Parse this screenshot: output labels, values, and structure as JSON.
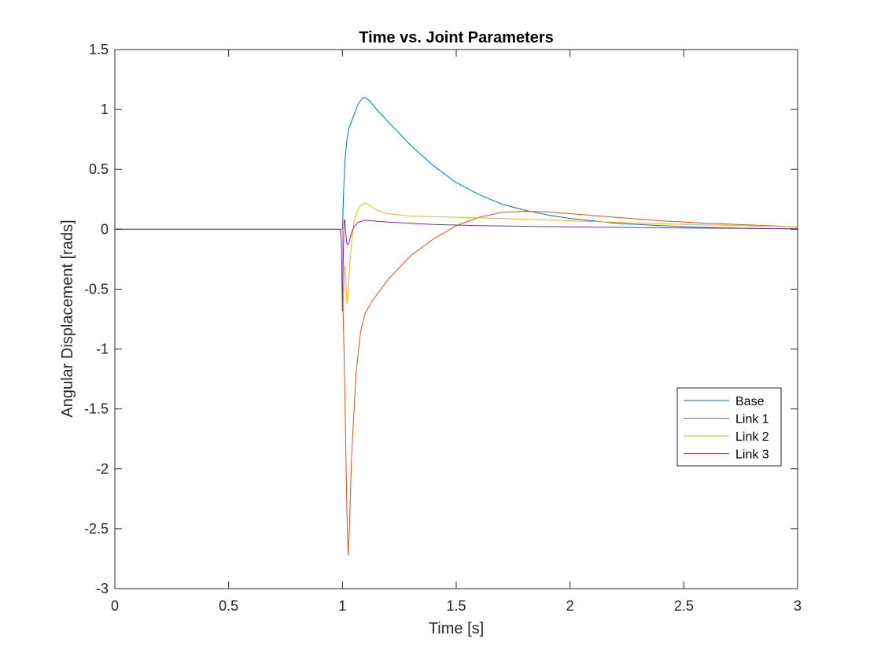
{
  "chart_data": {
    "type": "line",
    "title": "Time vs. Joint Parameters",
    "xlabel": "Time [s]",
    "ylabel": "Angular Displacement [rads]",
    "xlim": [
      0,
      3
    ],
    "ylim": [
      -3,
      1.5
    ],
    "xticks": [
      0,
      0.5,
      1,
      1.5,
      2,
      2.5,
      3
    ],
    "xtick_labels": [
      "0",
      "0.5",
      "1",
      "1.5",
      "2",
      "2.5",
      "3"
    ],
    "yticks": [
      -3,
      -2.5,
      -2,
      -1.5,
      -1,
      -0.5,
      0,
      0.5,
      1,
      1.5
    ],
    "ytick_labels": [
      "-3",
      "-2.5",
      "-2",
      "-1.5",
      "-1",
      "-0.5",
      "0",
      "0.5",
      "1",
      "1.5"
    ],
    "grid": false,
    "box": true,
    "legend_position": "right, lower-middle",
    "series": [
      {
        "name": "Base",
        "color": "#0072BD",
        "x": [
          0,
          0.99,
          1.0,
          1.005,
          1.01,
          1.02,
          1.03,
          1.05,
          1.07,
          1.09,
          1.1,
          1.12,
          1.15,
          1.2,
          1.3,
          1.4,
          1.5,
          1.6,
          1.7,
          1.8,
          1.9,
          2.0,
          2.2,
          2.4,
          2.6,
          2.8,
          3.0
        ],
        "y": [
          0,
          0,
          0,
          0.3,
          0.55,
          0.75,
          0.85,
          0.95,
          1.05,
          1.1,
          1.1,
          1.07,
          1.0,
          0.9,
          0.7,
          0.53,
          0.39,
          0.29,
          0.21,
          0.16,
          0.12,
          0.09,
          0.05,
          0.03,
          0.015,
          0.007,
          0.003
        ]
      },
      {
        "name": "Link 1",
        "color": "#D95319",
        "x": [
          0,
          0.99,
          1.0,
          1.003,
          1.01,
          1.02,
          1.025,
          1.03,
          1.04,
          1.06,
          1.08,
          1.1,
          1.13,
          1.2,
          1.3,
          1.4,
          1.5,
          1.6,
          1.7,
          1.8,
          1.9,
          2.0,
          2.2,
          2.4,
          2.6,
          2.8,
          3.0
        ],
        "y": [
          0,
          0,
          0,
          -0.68,
          -1.3,
          -2.4,
          -2.72,
          -2.55,
          -1.9,
          -1.2,
          -0.85,
          -0.7,
          -0.6,
          -0.42,
          -0.22,
          -0.08,
          0.03,
          0.1,
          0.14,
          0.15,
          0.145,
          0.13,
          0.1,
          0.07,
          0.05,
          0.035,
          0.02
        ]
      },
      {
        "name": "Link 2",
        "color": "#EDB120",
        "x": [
          0,
          0.99,
          1.0,
          1.002,
          1.005,
          1.01,
          1.015,
          1.02,
          1.025,
          1.03,
          1.04,
          1.05,
          1.06,
          1.08,
          1.1,
          1.12,
          1.15,
          1.2,
          1.3,
          1.5,
          1.7,
          2.0,
          2.5,
          3.0
        ],
        "y": [
          0,
          0,
          0,
          -0.45,
          -0.6,
          -0.3,
          -0.4,
          -0.62,
          -0.55,
          -0.35,
          -0.12,
          0.05,
          0.13,
          0.2,
          0.22,
          0.2,
          0.16,
          0.13,
          0.11,
          0.1,
          0.09,
          0.07,
          0.04,
          0.02
        ]
      },
      {
        "name": "Link 3",
        "color": "#7E2F8E",
        "x": [
          0,
          0.99,
          0.995,
          1.0,
          1.003,
          1.007,
          1.01,
          1.015,
          1.02,
          1.025,
          1.03,
          1.04,
          1.05,
          1.07,
          1.1,
          1.2,
          1.4,
          1.6,
          2.0,
          2.5,
          3.0
        ],
        "y": [
          0,
          0,
          -0.1,
          -0.68,
          -0.3,
          0.07,
          0.08,
          -0.04,
          -0.12,
          -0.13,
          -0.1,
          -0.03,
          0.02,
          0.06,
          0.075,
          0.06,
          0.04,
          0.03,
          0.02,
          0.01,
          0.005
        ]
      }
    ]
  }
}
